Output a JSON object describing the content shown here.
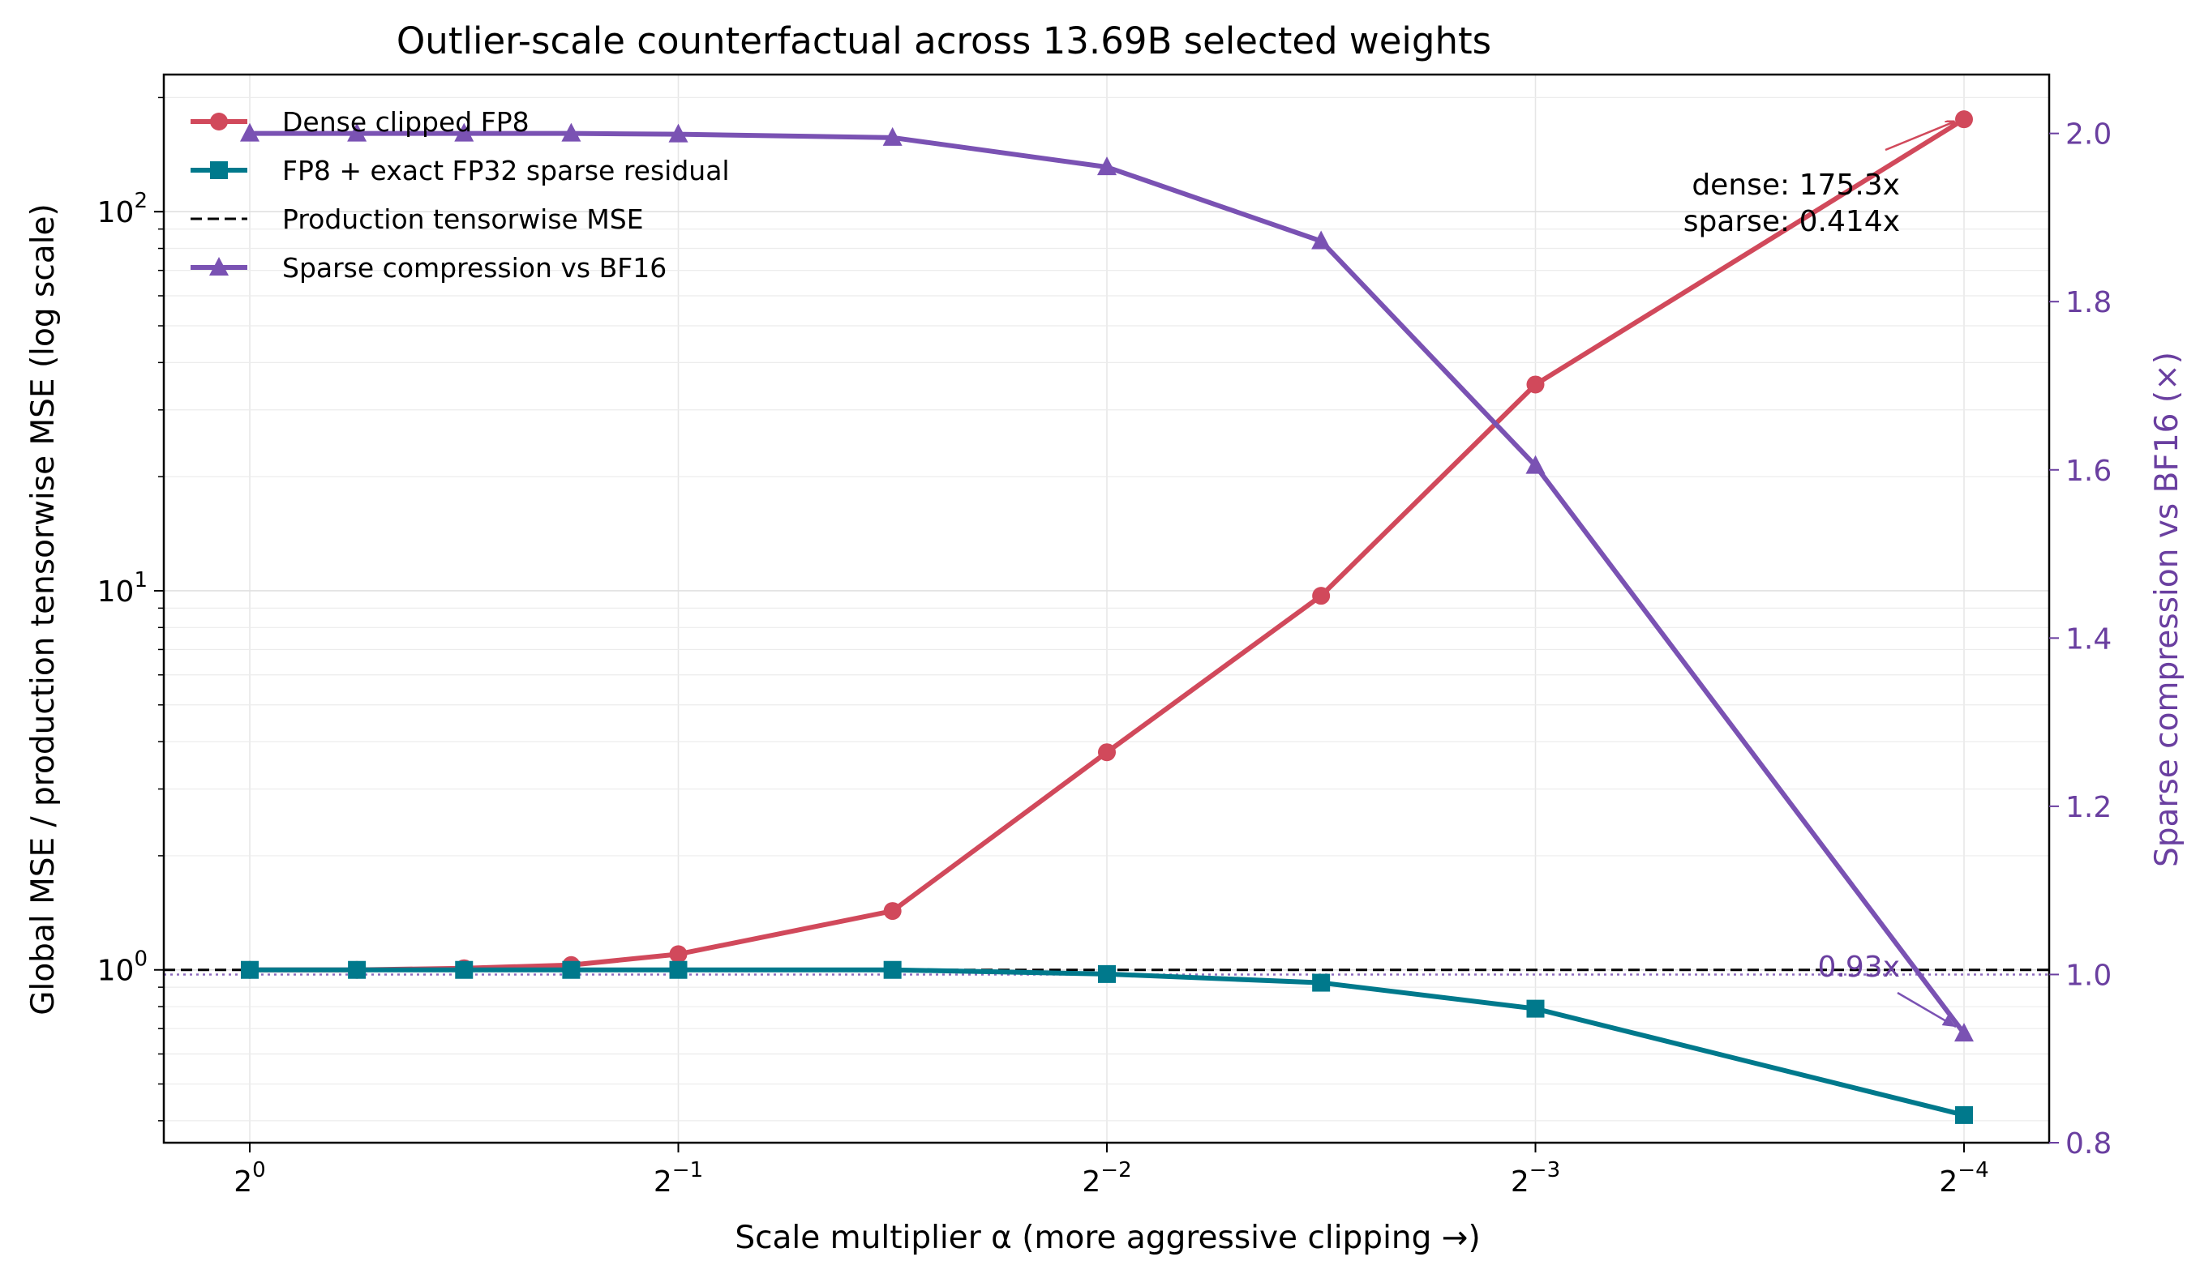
{
  "chart_data": {
    "type": "line",
    "title": "Outlier-scale counterfactual across 13.69B selected weights",
    "xlabel": "Scale multiplier α (more aggressive clipping →)",
    "ylabel": "Global MSE / production tensorwise MSE (log scale)",
    "ylabel_right": "Sparse compression vs BF16 (×)",
    "x_scale": "log2",
    "x_tick_values": [
      1,
      0.5,
      0.25,
      0.125,
      0.0625
    ],
    "x_tick_labels": [
      {
        "base": "2",
        "exp": "0"
      },
      {
        "base": "2",
        "exp": "−1"
      },
      {
        "base": "2",
        "exp": "−2"
      },
      {
        "base": "2",
        "exp": "−3"
      },
      {
        "base": "2",
        "exp": "−4"
      }
    ],
    "y_scale": "log",
    "ylim": [
      0.35,
      230
    ],
    "y_major_ticks": [
      {
        "value": 1,
        "base": "10",
        "exp": "0"
      },
      {
        "value": 10,
        "base": "10",
        "exp": "1"
      },
      {
        "value": 100,
        "base": "10",
        "exp": "2"
      }
    ],
    "y2lim": [
      0.8,
      2.07
    ],
    "y2_ticks": [
      0.8,
      1.0,
      1.2,
      1.4,
      1.6,
      1.8,
      2.0
    ],
    "y2_tick_labels": [
      "0.8",
      "1.0",
      "1.2",
      "1.4",
      "1.6",
      "1.8",
      "2.0"
    ],
    "grid": true,
    "legend_position": "top-left",
    "series": [
      {
        "name": "Dense clipped FP8",
        "axis": "left",
        "color": "#d1495b",
        "marker": "circle",
        "x": [
          1,
          0.8409,
          0.7071,
          0.5946,
          0.5,
          0.3536,
          0.25,
          0.1768,
          0.125,
          0.0625
        ],
        "y": [
          1.0,
          1.0,
          1.01,
          1.03,
          1.1,
          1.43,
          3.75,
          9.7,
          35,
          175.3
        ]
      },
      {
        "name": "FP8 + exact FP32 sparse residual",
        "axis": "left",
        "color": "#00798c",
        "marker": "square",
        "x": [
          1,
          0.8409,
          0.7071,
          0.5946,
          0.5,
          0.3536,
          0.25,
          0.1768,
          0.125,
          0.0625
        ],
        "y": [
          1.0,
          1.0,
          1.0,
          1.0,
          1.0,
          1.0,
          0.975,
          0.925,
          0.79,
          0.414
        ]
      },
      {
        "name": "Production tensorwise MSE",
        "axis": "left",
        "color": "#000000",
        "style": "dashed",
        "value": 1.0
      },
      {
        "name": "Sparse compression vs BF16",
        "axis": "right",
        "color": "#7a52b3",
        "marker": "triangle",
        "x": [
          1,
          0.8409,
          0.7071,
          0.5946,
          0.5,
          0.3536,
          0.25,
          0.1768,
          0.125,
          0.0625
        ],
        "y": [
          2.0,
          2.0,
          2.0,
          2.0,
          1.999,
          1.995,
          1.96,
          1.872,
          1.605,
          0.93
        ]
      },
      {
        "axis": "right",
        "color": "#7a52b3",
        "style": "dotted",
        "value": 1.0
      }
    ],
    "annotations": [
      {
        "lines": [
          "dense: 175.3x",
          "sparse: 0.414x"
        ],
        "target_x": 0.0625,
        "target_y": 175.3
      },
      {
        "text": "0.93x",
        "target_x": 0.0625,
        "target_y2": 0.93
      }
    ]
  }
}
